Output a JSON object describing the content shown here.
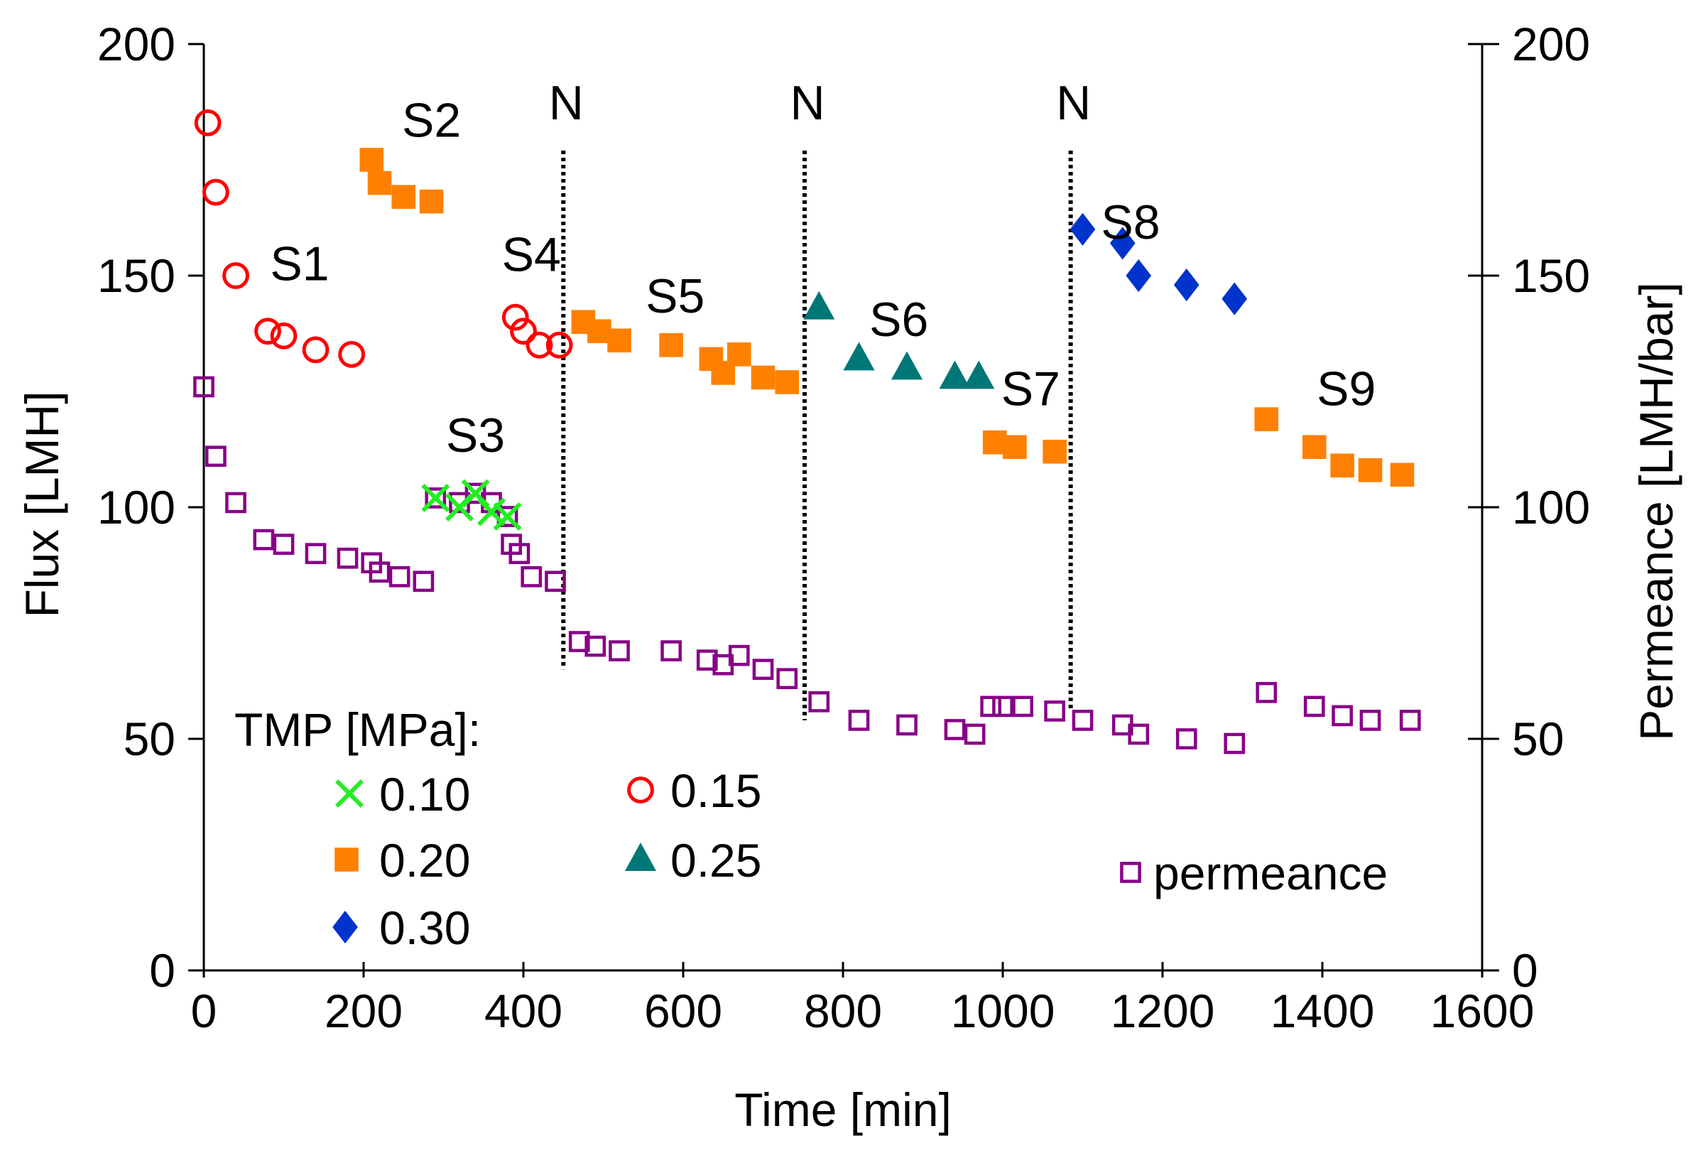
{
  "chart_data": {
    "type": "scatter",
    "xlabel": "Time [min]",
    "ylabel": "Flux [LMH]",
    "y2label": "Permeance [LMH/bar]",
    "xlim": [
      0,
      1600
    ],
    "ylim": [
      0,
      200
    ],
    "y2lim": [
      0,
      200
    ],
    "xticks": [
      0,
      200,
      400,
      600,
      800,
      1000,
      1200,
      1400,
      1600
    ],
    "yticks": [
      0,
      50,
      100,
      150,
      200
    ],
    "y2ticks": [
      0,
      50,
      100,
      150,
      200
    ],
    "legend_title": "TMP [MPa]:",
    "series": [
      {
        "name": "0.10",
        "marker": "x",
        "color": "#22ee22",
        "x": [
          290,
          320,
          340,
          360,
          380
        ],
        "y": [
          102,
          100,
          103,
          99,
          98
        ]
      },
      {
        "name": "0.15",
        "marker": "circle",
        "color": "#ff0000",
        "x": [
          5,
          15,
          40,
          80,
          100,
          140,
          185,
          390,
          400,
          420,
          445
        ],
        "y": [
          183,
          168,
          150,
          138,
          137,
          134,
          133,
          141,
          138,
          135,
          135
        ]
      },
      {
        "name": "0.20",
        "marker": "square-filled",
        "color": "#ff8000",
        "x": [
          210,
          220,
          250,
          285,
          475,
          495,
          520,
          585,
          635,
          650,
          670,
          700,
          730,
          990,
          1015,
          1065,
          1330,
          1390,
          1425,
          1460,
          1500
        ],
        "y": [
          175,
          170,
          167,
          166,
          140,
          138,
          136,
          135,
          132,
          129,
          133,
          128,
          127,
          114,
          113,
          112,
          119,
          113,
          109,
          108,
          107
        ]
      },
      {
        "name": "0.25",
        "marker": "triangle",
        "color": "#007777",
        "x": [
          770,
          820,
          880,
          940,
          970
        ],
        "y": [
          143,
          132,
          130,
          128,
          128
        ]
      },
      {
        "name": "0.30",
        "marker": "diamond",
        "color": "#0033cc",
        "x": [
          1100,
          1150,
          1170,
          1230,
          1290
        ],
        "y": [
          160,
          157,
          150,
          148,
          145
        ]
      },
      {
        "name": "permeance",
        "marker": "square-open",
        "color": "#880088",
        "axis": "right",
        "x": [
          0,
          15,
          40,
          75,
          100,
          140,
          180,
          210,
          220,
          245,
          275,
          290,
          320,
          340,
          360,
          380,
          385,
          395,
          410,
          440,
          470,
          490,
          520,
          585,
          630,
          650,
          670,
          700,
          730,
          770,
          820,
          880,
          940,
          965,
          985,
          1000,
          1025,
          1065,
          1100,
          1150,
          1170,
          1230,
          1290,
          1330,
          1390,
          1425,
          1460,
          1510
        ],
        "y": [
          126,
          111,
          101,
          93,
          92,
          90,
          89,
          88,
          86,
          85,
          84,
          102,
          101,
          103,
          101,
          98,
          92,
          90,
          85,
          84,
          71,
          70,
          69,
          69,
          67,
          66,
          68,
          65,
          63,
          58,
          54,
          53,
          52,
          51,
          57,
          57,
          57,
          56,
          54,
          53,
          51,
          50,
          49,
          60,
          57,
          55,
          54,
          54
        ]
      }
    ],
    "stage_labels": [
      {
        "text": "S1",
        "x": 120,
        "y": 149
      },
      {
        "text": "S2",
        "x": 285,
        "y": 180
      },
      {
        "text": "S3",
        "x": 340,
        "y": 112
      },
      {
        "text": "S4",
        "x": 410,
        "y": 151
      },
      {
        "text": "S5",
        "x": 590,
        "y": 142
      },
      {
        "text": "S6",
        "x": 870,
        "y": 137
      },
      {
        "text": "S7",
        "x": 1035,
        "y": 122
      },
      {
        "text": "S8",
        "x": 1160,
        "y": 158
      },
      {
        "text": "S9",
        "x": 1430,
        "y": 122
      }
    ],
    "dividers": [
      {
        "label": "N",
        "x": 450,
        "y_bottom": 65,
        "y_top": 177
      },
      {
        "label": "N",
        "x": 752,
        "y_bottom": 54,
        "y_top": 177
      },
      {
        "label": "N",
        "x": 1085,
        "y_bottom": 56,
        "y_top": 177
      }
    ]
  }
}
